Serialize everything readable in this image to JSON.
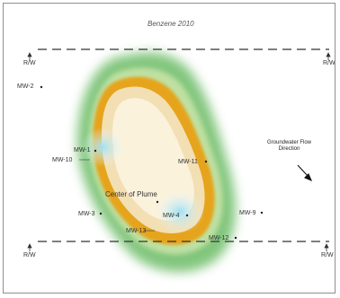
{
  "map": {
    "title": "Benzene 2010",
    "right_of_way": [
      "R/W",
      "R/W",
      "R/W",
      "R/W"
    ],
    "wells": [
      {
        "id": "mw2",
        "label": "MW-2"
      },
      {
        "id": "mw1",
        "label": "MW-1"
      },
      {
        "id": "mw10",
        "label": "MW-10"
      },
      {
        "id": "mw11",
        "label": "MW-11"
      },
      {
        "id": "mw3",
        "label": "MW-3"
      },
      {
        "id": "mw4",
        "label": "MW-4"
      },
      {
        "id": "mw13",
        "label": "MW-13"
      },
      {
        "id": "mw9",
        "label": "MW-9"
      },
      {
        "id": "mw12",
        "label": "MW-12"
      }
    ],
    "center_label": "Center of Plume",
    "groundwater_label": [
      "Groundwater Flow",
      "Direction"
    ],
    "colors": {
      "outer": "#4daa54",
      "mid": "#e4a11b",
      "inner": "#f6e7c4",
      "core": "#a8e3f0"
    }
  }
}
